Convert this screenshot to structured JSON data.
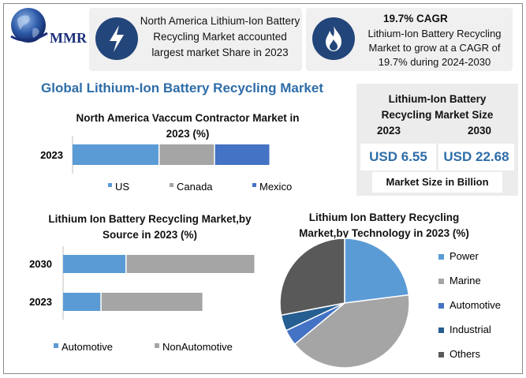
{
  "logo": {
    "text": "MMR"
  },
  "cards": [
    {
      "icon": "lightning-bolt-icon",
      "text_lines": [
        "North America Lithium-Ion Battery",
        "Recycling Market accounted",
        "largest market Share in 2023"
      ]
    },
    {
      "icon": "flame-icon",
      "title": "19.7% CAGR",
      "text_lines": [
        "Lithium-Ion Battery Recycling",
        "Market to grow at a CAGR of",
        "19.7% during 2024-2030"
      ]
    }
  ],
  "main_title": "Global Lithium-Ion Battery Recycling Market",
  "market_size": {
    "title_lines": [
      "Lithium-Ion Battery",
      "Recycling Market Size"
    ],
    "year1": "2023",
    "year2": "2030",
    "value1": "USD 6.55",
    "value2": "USD 22.68",
    "footer": "Market Size in Billion"
  },
  "chart_titles": [
    [
      "North America Vaccum Contractor Market in",
      "2023 (%)"
    ],
    [
      "Lithium Ion Battery Recycling Market,by",
      "Source in 2023 (%)"
    ],
    [
      "Lithium Ion Battery Recycling",
      "Market,by Technology in 2023 (%)"
    ]
  ],
  "colors": {
    "blue": "#5b9bd5",
    "gray": "#a5a5a5",
    "mid_blue": "#4472c4",
    "dark_blue": "#255e91",
    "dark_gray": "#595959",
    "title_blue": "#2e6da8",
    "icon_navy": "#22457a"
  },
  "chart_data": [
    {
      "type": "bar",
      "orientation": "horizontal",
      "stacked": true,
      "categories": [
        "2023"
      ],
      "series": [
        {
          "name": "US",
          "values": [
            44
          ],
          "color": "#5b9bd5"
        },
        {
          "name": "Canada",
          "values": [
            28
          ],
          "color": "#a5a5a5"
        },
        {
          "name": "Mexico",
          "values": [
            28
          ],
          "color": "#4472c4"
        }
      ],
      "legend": "bottom"
    },
    {
      "type": "bar",
      "orientation": "horizontal",
      "stacked": true,
      "categories": [
        "2030",
        "2023"
      ],
      "series": [
        {
          "name": "Automotive",
          "values": [
            33,
            20
          ],
          "color": "#5b9bd5"
        },
        {
          "name": "NonAutomotive",
          "values": [
            67,
            53
          ],
          "color": "#a5a5a5"
        }
      ],
      "legend": "bottom"
    },
    {
      "type": "pie",
      "labels": [
        "Power",
        "Marine",
        "Automotive",
        "Industrial",
        "Others"
      ],
      "values": [
        23,
        41,
        4,
        4,
        28
      ],
      "colors": [
        "#5b9bd5",
        "#a5a5a5",
        "#4472c4",
        "#255e91",
        "#595959"
      ],
      "legend": "right"
    }
  ]
}
